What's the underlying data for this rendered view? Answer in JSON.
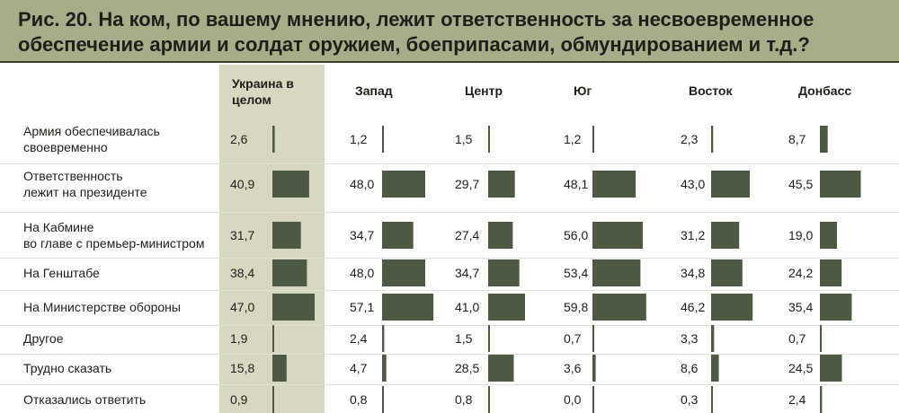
{
  "title": "Рис. 20. На ком, по вашему мнению, лежит ответственность за несвоевременное обеспечение армии и солдат оружием, боеприпасами, обмундированием и т.д.?",
  "colors": {
    "header_bg": "#a9ac89",
    "highlight_column": "#d8d8c2",
    "bar": "#4c5a44"
  },
  "chart_data": {
    "type": "bar",
    "orientation": "horizontal",
    "title": "Рис. 20. На ком, по вашему мнению, лежит ответственность за несвоевременное обеспечение армии и солдат оружием, боеприпасами, обмундированием и т.д.?",
    "categories": [
      "Армия обеспечивалась своевременно",
      "Ответственность лежит на президенте",
      "На Кабмине во главе с премьер-министром",
      "На Генштабе",
      "На Министерстве обороны",
      "Другое",
      "Трудно сказать",
      "Отказались ответить"
    ],
    "category_lines": [
      [
        "Армия обеспечивалась",
        "своевременно"
      ],
      [
        "Ответственность",
        "лежит на президенте"
      ],
      [
        "На Кабмине",
        "во главе с премьер-министром"
      ],
      [
        "На Генштабе"
      ],
      [
        "На Министерстве обороны"
      ],
      [
        "Другое"
      ],
      [
        "Трудно сказать"
      ],
      [
        "Отказались ответить"
      ]
    ],
    "series": [
      {
        "name": "Украина в целом",
        "name_lines": [
          "Украина в",
          "целом"
        ],
        "values": [
          2.6,
          40.9,
          31.7,
          38.4,
          47.0,
          1.9,
          15.8,
          0.9
        ],
        "labels": [
          "2,6",
          "40,9",
          "31,7",
          "38,4",
          "47,0",
          "1,9",
          "15,8",
          "0,9"
        ]
      },
      {
        "name": "Запад",
        "name_lines": [
          "Запад"
        ],
        "values": [
          1.2,
          48.0,
          34.7,
          48.0,
          57.1,
          2.4,
          4.7,
          0.8
        ],
        "labels": [
          "1,2",
          "48,0",
          "34,7",
          "48,0",
          "57,1",
          "2,4",
          "4,7",
          "0,8"
        ]
      },
      {
        "name": "Центр",
        "name_lines": [
          "Центр"
        ],
        "values": [
          1.5,
          29.7,
          27.4,
          34.7,
          41.0,
          1.5,
          28.5,
          0.8
        ],
        "labels": [
          "1,5",
          "29,7",
          "27,4",
          "34,7",
          "41,0",
          "1,5",
          "28,5",
          "0,8"
        ]
      },
      {
        "name": "Юг",
        "name_lines": [
          "Юг"
        ],
        "values": [
          1.2,
          48.1,
          56.0,
          53.4,
          59.8,
          0.7,
          3.6,
          0.0
        ],
        "labels": [
          "1,2",
          "48,1",
          "56,0",
          "53,4",
          "59,8",
          "0,7",
          "3,6",
          "0,0"
        ]
      },
      {
        "name": "Восток",
        "name_lines": [
          "Восток"
        ],
        "values": [
          2.3,
          43.0,
          31.2,
          34.8,
          46.2,
          3.3,
          8.6,
          0.3
        ],
        "labels": [
          "2,3",
          "43,0",
          "31,2",
          "34,8",
          "46,2",
          "3,3",
          "8,6",
          "0,3"
        ]
      },
      {
        "name": "Донбасс",
        "name_lines": [
          "Донбасс"
        ],
        "values": [
          8.7,
          45.5,
          19.0,
          24.2,
          35.4,
          0.7,
          24.5,
          2.4
        ],
        "labels": [
          "8,7",
          "45,5",
          "19,0",
          "24,2",
          "35,4",
          "0,7",
          "24,5",
          "2,4"
        ]
      }
    ],
    "xlim": [
      0,
      60
    ],
    "grid": false,
    "legend": "none"
  }
}
